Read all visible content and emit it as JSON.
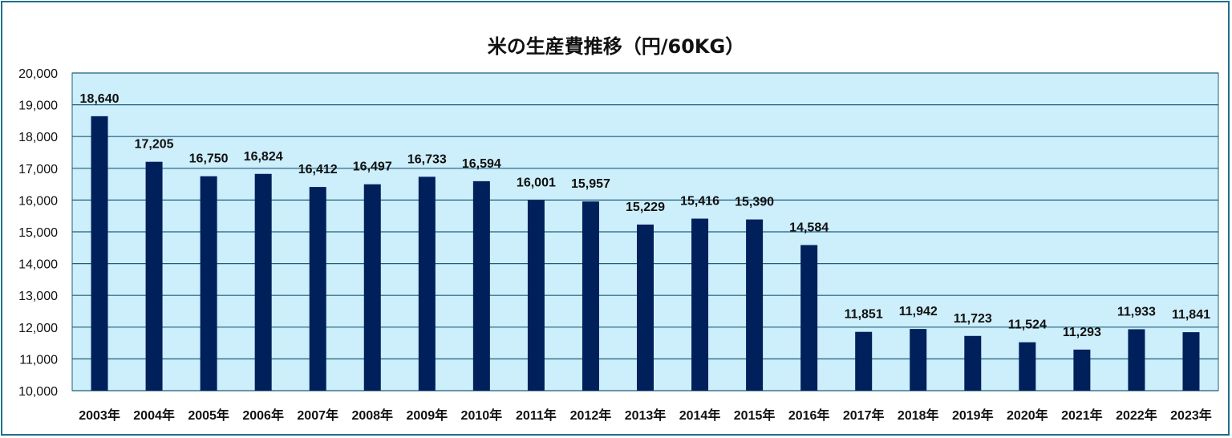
{
  "chart_data": {
    "type": "bar",
    "title": "米の生産費推移（円/60KG）",
    "categories": [
      "2003年",
      "2004年",
      "2005年",
      "2006年",
      "2007年",
      "2008年",
      "2009年",
      "2010年",
      "2011年",
      "2012年",
      "2013年",
      "2014年",
      "2015年",
      "2016年",
      "2017年",
      "2018年",
      "2019年",
      "2020年",
      "2021年",
      "2022年",
      "2023年"
    ],
    "values": [
      18640,
      17205,
      16750,
      16824,
      16412,
      16497,
      16733,
      16594,
      16001,
      15957,
      15229,
      15416,
      15390,
      14584,
      11851,
      11942,
      11723,
      11524,
      11293,
      11933,
      11841
    ],
    "value_labels": [
      "18,640",
      "17,205",
      "16,750",
      "16,824",
      "16,412",
      "16,497",
      "16,733",
      "16,594",
      "16,001",
      "15,957",
      "15,229",
      "15,416",
      "15,390",
      "14,584",
      "11,851",
      "11,942",
      "11,723",
      "11,524",
      "11,293",
      "11,933",
      "11,841"
    ],
    "yticks": [
      "10,000",
      "11,000",
      "12,000",
      "13,000",
      "14,000",
      "15,000",
      "16,000",
      "17,000",
      "18,000",
      "19,000",
      "20,000"
    ],
    "ylim": [
      10000,
      20000
    ],
    "xlabel": "",
    "ylabel": "",
    "grid": true,
    "legend": "none",
    "colors": {
      "bar": "#00205b",
      "plot_background": "#cdeefb",
      "gridline": "#1f5f7a",
      "border": "#1f6f8b"
    }
  }
}
